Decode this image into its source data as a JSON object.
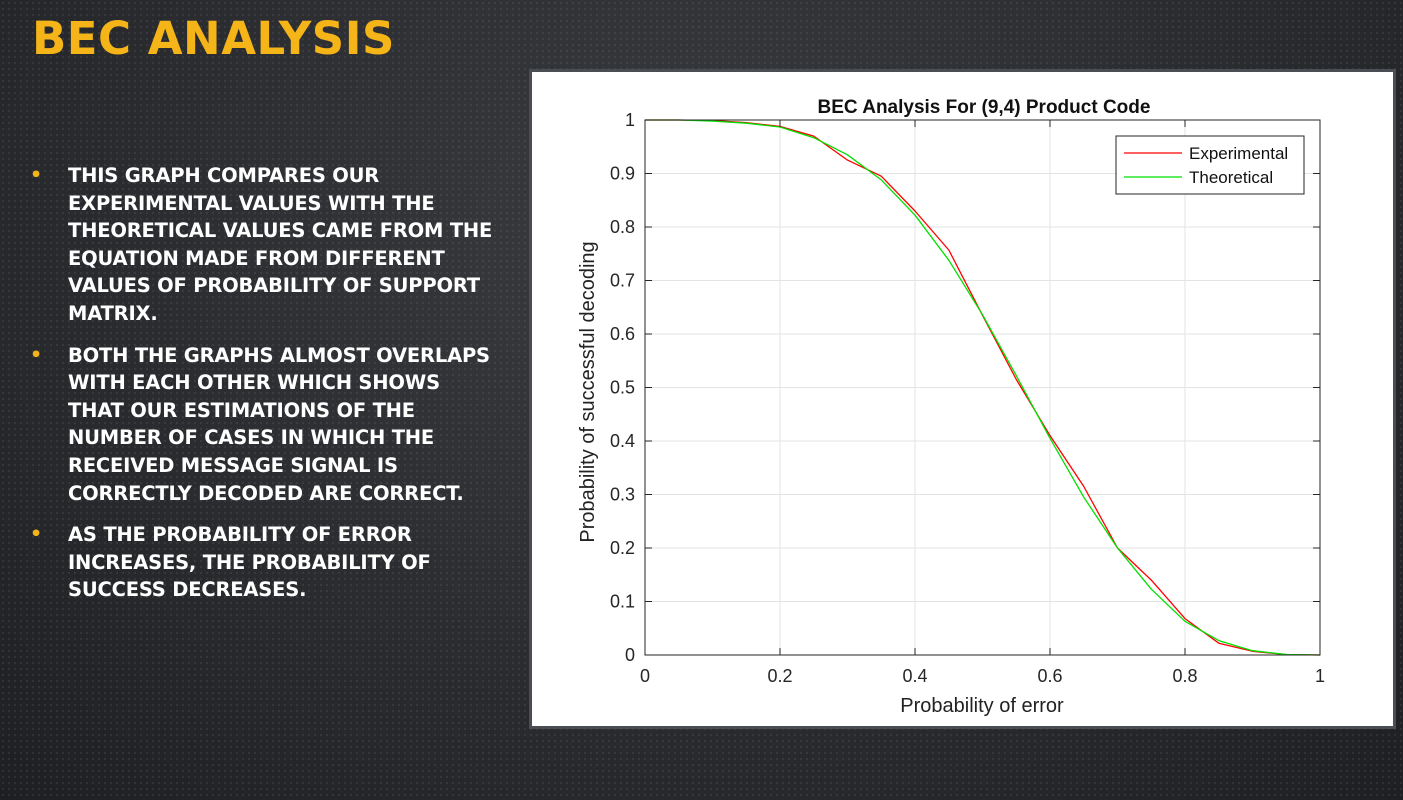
{
  "slide": {
    "title": "BEC ANALYSIS",
    "bullets": [
      "This graph compares our experimental values with the theoretical values came from the equation made from different values of probability of support matrix.",
      "Both the graphs almost overlaps with each other which shows that our estimations of the number of cases in which the received message signal is correctly decoded are correct.",
      "As the probability of error increases, the probability of success decreases."
    ]
  },
  "colors": {
    "title": "#f5b418",
    "bullet_marker": "#f5b418",
    "experimental": "#ff0000",
    "theoretical": "#00e000"
  },
  "chart_data": {
    "type": "line",
    "title": "BEC Analysis For (9,4) Product Code",
    "xlabel": "Probability of error",
    "ylabel": "Probability of successful decoding",
    "xlim": [
      0,
      1
    ],
    "ylim": [
      0,
      1
    ],
    "xticks": [
      "0",
      "0.2",
      "0.4",
      "0.6",
      "0.8",
      "1"
    ],
    "yticks": [
      "0",
      "0.1",
      "0.2",
      "0.3",
      "0.4",
      "0.5",
      "0.6",
      "0.7",
      "0.8",
      "0.9",
      "1"
    ],
    "grid": true,
    "legend_position": "top-right",
    "x": [
      0,
      0.05,
      0.1,
      0.15,
      0.2,
      0.25,
      0.3,
      0.35,
      0.4,
      0.45,
      0.5,
      0.55,
      0.6,
      0.65,
      0.7,
      0.75,
      0.8,
      0.85,
      0.9,
      0.95,
      1
    ],
    "series": [
      {
        "name": "Experimental",
        "color": "#ff0000",
        "values": [
          1,
          1,
          0.999,
          0.995,
          0.988,
          0.97,
          0.925,
          0.895,
          0.83,
          0.757,
          0.635,
          0.515,
          0.41,
          0.315,
          0.2,
          0.14,
          0.068,
          0.022,
          0.007,
          0.001,
          0
        ]
      },
      {
        "name": "Theoretical",
        "color": "#00e000",
        "values": [
          1,
          1,
          0.998,
          0.994,
          0.987,
          0.967,
          0.935,
          0.888,
          0.822,
          0.738,
          0.636,
          0.522,
          0.405,
          0.295,
          0.2,
          0.123,
          0.063,
          0.027,
          0.008,
          0.001,
          0
        ]
      }
    ]
  }
}
